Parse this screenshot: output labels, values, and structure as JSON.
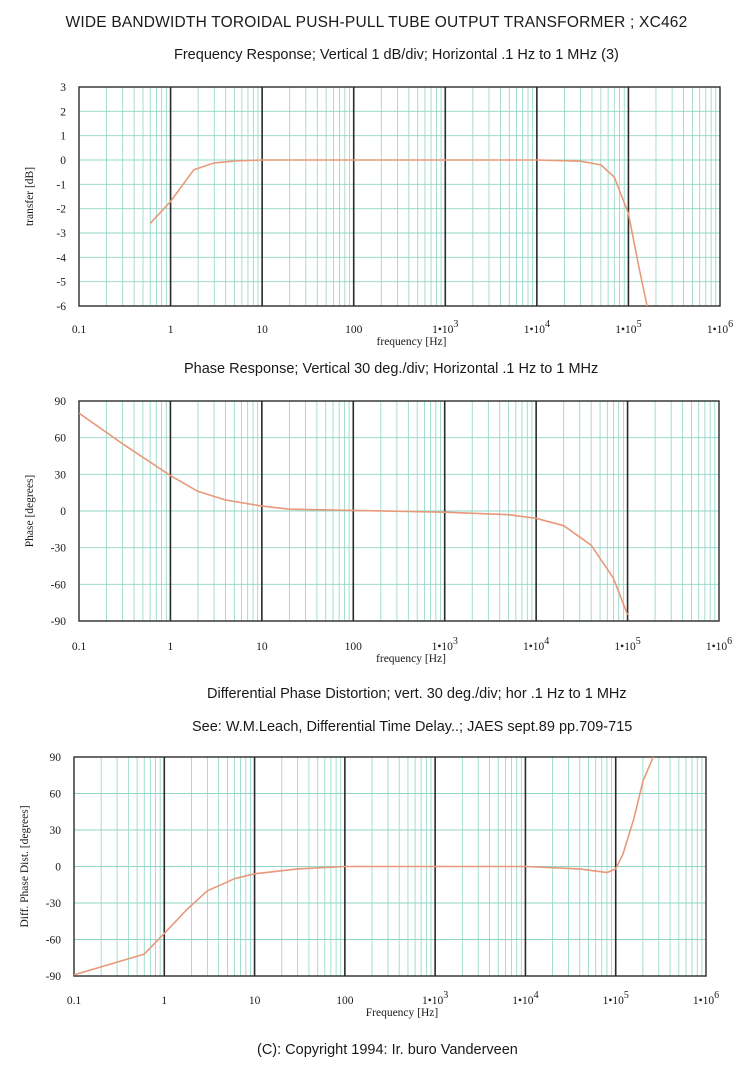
{
  "page": {
    "title": "WIDE BANDWIDTH TOROIDAL PUSH-PULL TUBE OUTPUT TRANSFORMER ; XC462",
    "copyright": "(C): Copyright 1994: Ir. buro Vanderveen"
  },
  "colors": {
    "grid_minor": "#8fd6c4",
    "grid_major": "#2a2a2a",
    "curve": "#e8997a",
    "axis_text": "#1a1a1a"
  },
  "chart_data": [
    {
      "type": "line",
      "title": "Frequency Response; Vertical 1 dB/div; Horizontal .1 Hz to 1 MHz   (3)",
      "subtitle": "",
      "xlabel": "frequency [Hz]",
      "ylabel": "transfer [dB]",
      "xscale": "log",
      "xlim": [
        0.1,
        1000000
      ],
      "ylim": [
        -6,
        3
      ],
      "yticks": [
        3,
        2,
        1,
        0,
        -1,
        -2,
        -3,
        -4,
        -5,
        -6
      ],
      "xtick_labels": [
        {
          "value": 0.1,
          "base": "0.1",
          "exp": ""
        },
        {
          "value": 1,
          "base": "1",
          "exp": ""
        },
        {
          "value": 10,
          "base": "10",
          "exp": ""
        },
        {
          "value": 100,
          "base": "100",
          "exp": ""
        },
        {
          "value": 1000,
          "base": "1•10",
          "exp": "3"
        },
        {
          "value": 10000,
          "base": "1•10",
          "exp": "4"
        },
        {
          "value": 100000,
          "base": "1•10",
          "exp": "5"
        },
        {
          "value": 1000000,
          "base": "1•10",
          "exp": "6"
        }
      ],
      "grid": true,
      "series": [
        {
          "values": [
            [
              0.6,
              -2.6
            ],
            [
              1,
              -1.7
            ],
            [
              1.8,
              -0.4
            ],
            [
              3,
              -0.12
            ],
            [
              5,
              -0.04
            ],
            [
              10,
              0
            ],
            [
              1000,
              0
            ],
            [
              10000,
              0
            ],
            [
              30000,
              -0.05
            ],
            [
              50000,
              -0.2
            ],
            [
              70000,
              -0.7
            ],
            [
              100000,
              -2.2
            ],
            [
              130000,
              -4.4
            ],
            [
              160000,
              -6
            ]
          ]
        }
      ]
    },
    {
      "type": "line",
      "title": "Phase Response; Vertical 30 deg./div; Horizontal .1 Hz to 1 MHz",
      "subtitle": "",
      "xlabel": "frequency [Hz]",
      "ylabel": "Phase  [degrees]",
      "xscale": "log",
      "xlim": [
        0.1,
        1000000
      ],
      "ylim": [
        -90,
        90
      ],
      "yticks": [
        90,
        60,
        30,
        0,
        -30,
        -60,
        -90
      ],
      "xtick_labels": [
        {
          "value": 0.1,
          "base": "0.1",
          "exp": ""
        },
        {
          "value": 1,
          "base": "1",
          "exp": ""
        },
        {
          "value": 10,
          "base": "10",
          "exp": ""
        },
        {
          "value": 100,
          "base": "100",
          "exp": ""
        },
        {
          "value": 1000,
          "base": "1•10",
          "exp": "3"
        },
        {
          "value": 10000,
          "base": "1•10",
          "exp": "4"
        },
        {
          "value": 100000,
          "base": "1•10",
          "exp": "5"
        },
        {
          "value": 1000000,
          "base": "1•10",
          "exp": "6"
        }
      ],
      "grid": true,
      "series": [
        {
          "values": [
            [
              0.1,
              80
            ],
            [
              0.3,
              55
            ],
            [
              0.6,
              40
            ],
            [
              1,
              29
            ],
            [
              2,
              16
            ],
            [
              4,
              9
            ],
            [
              10,
              4
            ],
            [
              20,
              1.5
            ],
            [
              100,
              0.5
            ],
            [
              1000,
              -1
            ],
            [
              5000,
              -3
            ],
            [
              10000,
              -6
            ],
            [
              20000,
              -12
            ],
            [
              40000,
              -28
            ],
            [
              70000,
              -55
            ],
            [
              100000,
              -85
            ]
          ]
        }
      ]
    },
    {
      "type": "line",
      "title": "Differential Phase Distortion; vert. 30 deg./div; hor .1 Hz to 1 MHz",
      "subtitle": "See: W.M.Leach, Differential Time Delay..; JAES sept.89 pp.709-715",
      "xlabel": "Frequency  [Hz]",
      "ylabel": "Diff. Phase Dist.  [degrees]",
      "xscale": "log",
      "xlim": [
        0.1,
        1000000
      ],
      "ylim": [
        -90,
        90
      ],
      "yticks": [
        90,
        60,
        30,
        0,
        -30,
        -60,
        -90
      ],
      "xtick_labels": [
        {
          "value": 0.1,
          "base": "0.1",
          "exp": ""
        },
        {
          "value": 1,
          "base": "1",
          "exp": ""
        },
        {
          "value": 10,
          "base": "10",
          "exp": ""
        },
        {
          "value": 100,
          "base": "100",
          "exp": ""
        },
        {
          "value": 1000,
          "base": "1•10",
          "exp": "3"
        },
        {
          "value": 10000,
          "base": "1•10",
          "exp": "4"
        },
        {
          "value": 100000,
          "base": "1•10",
          "exp": "5"
        },
        {
          "value": 1000000,
          "base": "1•10",
          "exp": "6"
        }
      ],
      "grid": true,
      "series": [
        {
          "values": [
            [
              0.1,
              -89
            ],
            [
              0.6,
              -72
            ],
            [
              1,
              -55
            ],
            [
              1.8,
              -35
            ],
            [
              3,
              -20
            ],
            [
              6,
              -10
            ],
            [
              10,
              -6
            ],
            [
              30,
              -2
            ],
            [
              100,
              0
            ],
            [
              1000,
              0
            ],
            [
              10000,
              0
            ],
            [
              40000,
              -2
            ],
            [
              80000,
              -5
            ],
            [
              100000,
              -2
            ],
            [
              120000,
              10
            ],
            [
              160000,
              40
            ],
            [
              200000,
              70
            ],
            [
              260000,
              90
            ]
          ]
        }
      ]
    }
  ]
}
